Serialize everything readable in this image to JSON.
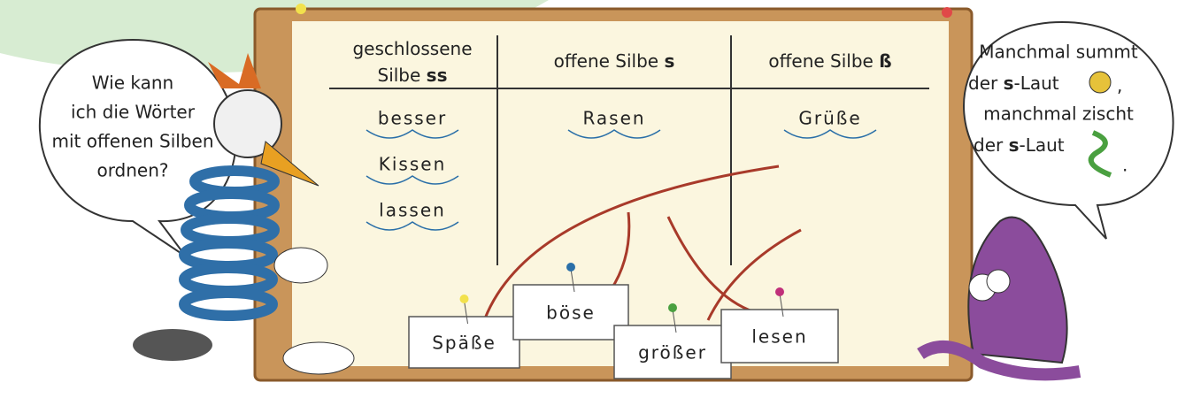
{
  "speech_left": {
    "lines": [
      "Wie kann",
      "ich die Wörter",
      "mit offenen Silben",
      "ordnen?"
    ]
  },
  "speech_right": {
    "line_1": "Manchmal summt",
    "line_2": {
      "before": "der",
      "bold": "s",
      "after": "-Laut",
      "mark": ","
    },
    "line_3": "manchmal zischt",
    "line_4": {
      "before": "der",
      "bold": "s",
      "after": "-Laut",
      "mark": "."
    }
  },
  "table": {
    "columns": [
      {
        "header_lines": [
          "geschlossene",
          "Silbe"
        ],
        "bold": "ss",
        "words": [
          "besser",
          "Kissen",
          "lassen"
        ]
      },
      {
        "header_lines": [
          "offene Silbe"
        ],
        "bold": "s",
        "words": [
          "Rasen"
        ]
      },
      {
        "header_lines": [
          "offene Silbe"
        ],
        "bold": "ß",
        "words": [
          "Grüße"
        ]
      }
    ]
  },
  "cards": [
    "Späße",
    "böse",
    "größer",
    "lesen"
  ]
}
